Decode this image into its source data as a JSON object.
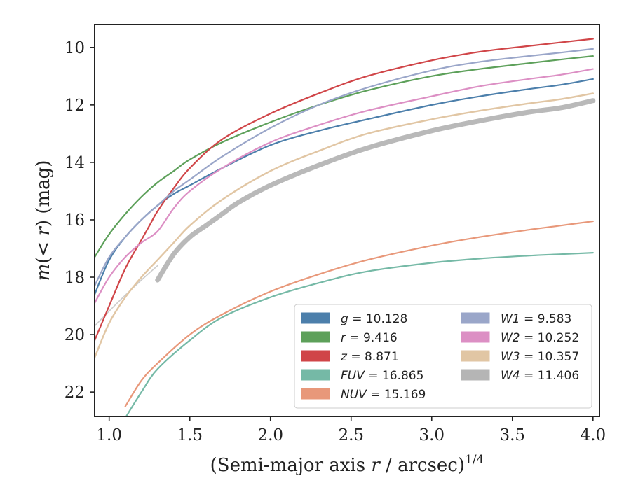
{
  "chart_data": {
    "type": "line",
    "title": "",
    "xlabel": {
      "prefix": "(Semi-major axis ",
      "var": "r",
      "suffix": " / arcsec)",
      "sup": "1/4"
    },
    "ylabel": {
      "var": "m",
      "mid": "(< ",
      "var2": "r",
      "suffix": ") (mag)"
    },
    "xlim": [
      0.91,
      4.04
    ],
    "ylim": [
      22.85,
      9.2
    ],
    "y_inverted": true,
    "xticks": [
      1.0,
      1.5,
      2.0,
      2.5,
      3.0,
      3.5,
      4.0
    ],
    "xtick_labels": [
      "1.0",
      "1.5",
      "2.0",
      "2.5",
      "3.0",
      "3.5",
      "4.0"
    ],
    "yticks": [
      10,
      12,
      14,
      16,
      18,
      20,
      22
    ],
    "ytick_labels": [
      "10",
      "12",
      "14",
      "16",
      "18",
      "20",
      "22"
    ],
    "grid": false,
    "legend_position": "lower-right",
    "series": [
      {
        "name": "g",
        "value": "10.128",
        "color": "#4c7fab",
        "width": 2.2,
        "x": [
          0.91,
          1.0,
          1.1,
          1.2,
          1.3,
          1.4,
          1.5,
          1.7,
          2.0,
          2.3,
          2.6,
          3.0,
          3.3,
          3.6,
          3.8,
          4.0
        ],
        "y": [
          18.6,
          17.4,
          16.6,
          16.0,
          15.5,
          15.1,
          14.8,
          14.2,
          13.4,
          12.9,
          12.5,
          12.0,
          11.7,
          11.45,
          11.3,
          11.1
        ]
      },
      {
        "name": "r",
        "value": "9.416",
        "color": "#5da05a",
        "width": 2.2,
        "x": [
          0.91,
          1.0,
          1.1,
          1.2,
          1.3,
          1.4,
          1.5,
          1.7,
          2.0,
          2.3,
          2.6,
          3.0,
          3.3,
          3.6,
          3.8,
          4.0
        ],
        "y": [
          17.3,
          16.5,
          15.8,
          15.2,
          14.7,
          14.3,
          13.9,
          13.3,
          12.6,
          12.0,
          11.5,
          11.0,
          10.75,
          10.55,
          10.42,
          10.3
        ]
      },
      {
        "name": "z",
        "value": "8.871",
        "color": "#d04548",
        "width": 2.2,
        "x": [
          0.91,
          1.0,
          1.1,
          1.2,
          1.25,
          1.3,
          1.4,
          1.5,
          1.7,
          2.0,
          2.3,
          2.6,
          3.0,
          3.3,
          3.6,
          4.0
        ],
        "y": [
          20.2,
          19.0,
          17.7,
          16.7,
          16.2,
          15.7,
          14.9,
          14.2,
          13.2,
          12.3,
          11.6,
          11.0,
          10.45,
          10.15,
          9.95,
          9.7
        ]
      },
      {
        "name": "FUV",
        "value": "16.865",
        "color": "#75b9a6",
        "width": 2.2,
        "x": [
          1.1,
          1.2,
          1.3,
          1.5,
          1.7,
          2.0,
          2.3,
          2.6,
          3.0,
          3.3,
          3.6,
          3.8,
          4.0
        ],
        "y": [
          22.9,
          22.0,
          21.2,
          20.2,
          19.4,
          18.7,
          18.2,
          17.8,
          17.5,
          17.35,
          17.25,
          17.2,
          17.15
        ]
      },
      {
        "name": "NUV",
        "value": "15.169",
        "color": "#e8987a",
        "width": 2.2,
        "x": [
          1.1,
          1.2,
          1.3,
          1.5,
          1.7,
          2.0,
          2.3,
          2.6,
          3.0,
          3.3,
          3.6,
          3.8,
          4.0
        ],
        "y": [
          22.5,
          21.6,
          21.0,
          20.0,
          19.3,
          18.5,
          17.9,
          17.4,
          16.9,
          16.6,
          16.35,
          16.2,
          16.05
        ]
      },
      {
        "name": "W1",
        "value": "9.583",
        "color": "#9aa6c9",
        "width": 2.2,
        "x": [
          0.91,
          1.0,
          1.1,
          1.2,
          1.3,
          1.4,
          1.5,
          1.7,
          2.0,
          2.3,
          2.6,
          3.0,
          3.3,
          3.6,
          3.8,
          4.0
        ],
        "y": [
          18.3,
          17.3,
          16.6,
          16.0,
          15.5,
          15.0,
          14.6,
          13.8,
          12.8,
          12.0,
          11.4,
          10.8,
          10.5,
          10.3,
          10.18,
          10.05
        ]
      },
      {
        "name": "W2",
        "value": "10.252",
        "color": "#dc8fc4",
        "width": 2.2,
        "x": [
          0.91,
          1.0,
          1.1,
          1.2,
          1.3,
          1.4,
          1.5,
          1.7,
          2.0,
          2.3,
          2.6,
          3.0,
          3.3,
          3.6,
          3.8,
          4.0
        ],
        "y": [
          18.9,
          18.0,
          17.3,
          16.8,
          16.4,
          15.6,
          15.0,
          14.2,
          13.3,
          12.7,
          12.2,
          11.7,
          11.35,
          11.1,
          10.95,
          10.75
        ]
      },
      {
        "name": "W3",
        "value": "10.357",
        "color": "#e1c6a4",
        "width": 2.4,
        "x": [
          0.91,
          1.0,
          1.1,
          1.2,
          1.3,
          1.4,
          1.5,
          1.7,
          2.0,
          2.3,
          2.6,
          3.0,
          3.3,
          3.6,
          3.8,
          4.0
        ],
        "y": [
          20.8,
          19.6,
          18.7,
          18.0,
          17.4,
          16.8,
          16.2,
          15.3,
          14.3,
          13.6,
          13.0,
          12.5,
          12.2,
          11.95,
          11.8,
          11.6
        ]
      },
      {
        "name": "W4",
        "value": "11.406",
        "color": "#b5b5b5",
        "width": 7,
        "x": [
          1.3,
          1.4,
          1.5,
          1.6,
          1.7,
          1.8,
          2.0,
          2.3,
          2.6,
          3.0,
          3.3,
          3.6,
          3.8,
          4.0
        ],
        "y": [
          18.1,
          17.2,
          16.6,
          16.2,
          15.8,
          15.4,
          14.8,
          14.1,
          13.5,
          12.9,
          12.55,
          12.25,
          12.1,
          11.85
        ]
      }
    ],
    "faint_segments": [
      {
        "series": "W4",
        "color": "#cccccc",
        "width": 1.6,
        "x": [
          0.91,
          1.05,
          1.2,
          1.3
        ],
        "y": [
          19.7,
          18.9,
          18.1,
          17.6
        ]
      }
    ]
  }
}
